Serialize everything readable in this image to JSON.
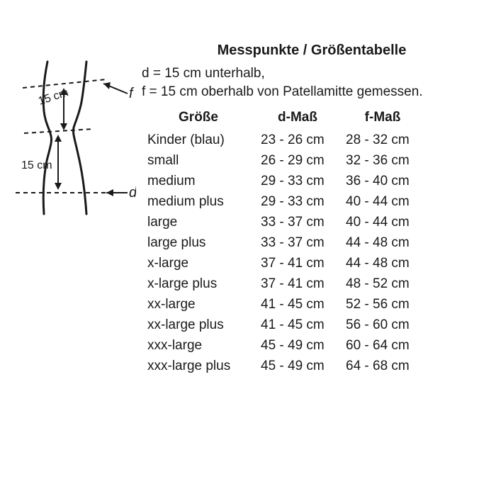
{
  "title": "Messpunkte / Größentabelle",
  "description_line1": "d = 15 cm unterhalb,",
  "description_line2": "f = 15 cm oberhalb von Patellamitte gemessen.",
  "diagram": {
    "label_f": "f",
    "label_d": "d",
    "dist_upper": "15 cm",
    "dist_lower": "15 cm",
    "stroke_color": "#1a1a1a",
    "stroke_width": 3
  },
  "table": {
    "headers": {
      "size": "Größe",
      "d": "d-Maß",
      "f": "f-Maß"
    },
    "rows": [
      {
        "size": "Kinder (blau)",
        "d": "23 - 26 cm",
        "f": "28 - 32 cm"
      },
      {
        "size": "small",
        "d": "26 - 29 cm",
        "f": "32 - 36 cm"
      },
      {
        "size": "medium",
        "d": "29 - 33 cm",
        "f": "36 - 40 cm"
      },
      {
        "size": "medium plus",
        "d": "29 - 33 cm",
        "f": "40 - 44 cm"
      },
      {
        "size": "large",
        "d": "33 - 37 cm",
        "f": "40 - 44 cm"
      },
      {
        "size": "large plus",
        "d": "33 - 37 cm",
        "f": "44 - 48 cm"
      },
      {
        "size": "x-large",
        "d": "37 - 41 cm",
        "f": "44 - 48 cm"
      },
      {
        "size": "x-large plus",
        "d": "37 - 41 cm",
        "f": "48 - 52 cm"
      },
      {
        "size": "xx-large",
        "d": "41 - 45 cm",
        "f": "52 - 56 cm"
      },
      {
        "size": "xx-large plus",
        "d": "41 - 45 cm",
        "f": "56 - 60 cm"
      },
      {
        "size": "xxx-large",
        "d": "45 - 49 cm",
        "f": "60 - 64 cm"
      },
      {
        "size": "xxx-large plus",
        "d": "45 - 49 cm",
        "f": "64 - 68 cm"
      }
    ]
  }
}
